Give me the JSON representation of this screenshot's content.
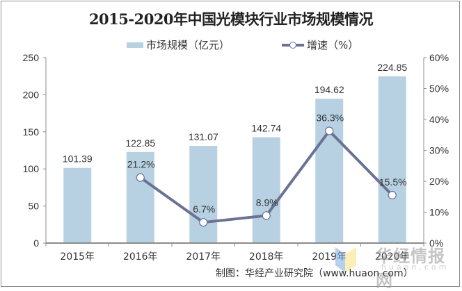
{
  "chart_data": {
    "type": "bar",
    "title": "2015-2020年中国光模块行业市场规模情况",
    "categories": [
      "2015年",
      "2016年",
      "2017年",
      "2018年",
      "2019年",
      "2020年"
    ],
    "series": [
      {
        "name": "市场规模（亿元）",
        "type": "bar",
        "axis": "left",
        "color": "#b7d1e3",
        "values": [
          101.39,
          122.85,
          131.07,
          142.74,
          194.62,
          224.85
        ],
        "labels": [
          "101.39",
          "122.85",
          "131.07",
          "142.74",
          "194.62",
          "224.85"
        ]
      },
      {
        "name": "增速（%）",
        "type": "line",
        "axis": "right",
        "color": "#6a7295",
        "values": [
          null,
          21.2,
          6.7,
          8.9,
          36.3,
          15.5
        ],
        "labels": [
          "",
          "21.2%",
          "6.7%",
          "8.9%",
          "36.3%",
          "15.5%"
        ]
      }
    ],
    "y_left": {
      "min": 0,
      "max": 250,
      "ticks": [
        0,
        50,
        100,
        150,
        200,
        250
      ],
      "tick_labels": [
        "0",
        "50",
        "100",
        "150",
        "200",
        "250"
      ]
    },
    "y_right": {
      "min": 0,
      "max": 60,
      "ticks": [
        0,
        10,
        20,
        30,
        40,
        50,
        60
      ],
      "tick_labels": [
        "0%",
        "10%",
        "20%",
        "30%",
        "40%",
        "50%",
        "60%"
      ]
    },
    "xlabel": "",
    "ylabel": "",
    "grid": false,
    "legend": "top-center"
  },
  "source_note": "制图：华经产业研究院（www.huaon.com）",
  "watermark": {
    "text": "华经情报网",
    "sub": "huaon.com"
  }
}
